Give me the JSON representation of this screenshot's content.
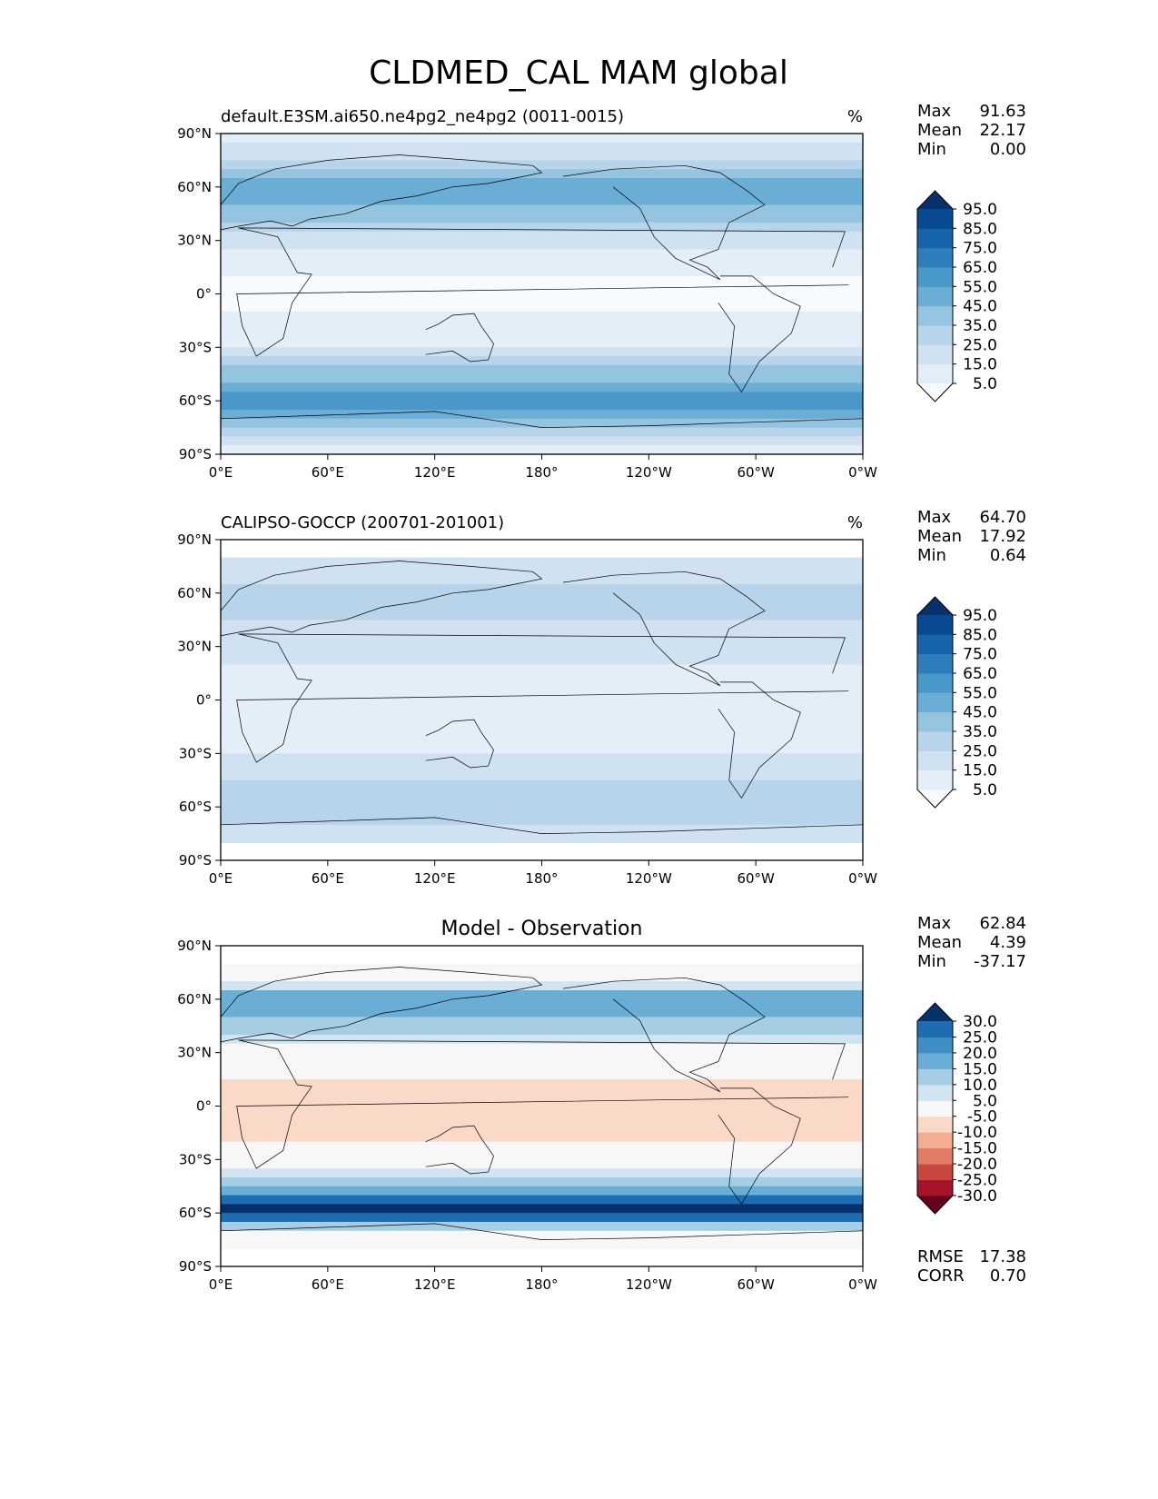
{
  "figure": {
    "title": "CLDMED_CAL MAM global",
    "lon_ticks": [
      "0°E",
      "60°E",
      "120°E",
      "180°",
      "120°W",
      "60°W",
      "0°W"
    ],
    "lat_ticks": [
      "90°N",
      "60°N",
      "30°N",
      "0°",
      "30°S",
      "60°S",
      "90°S"
    ]
  },
  "chart_data": [
    {
      "type": "heatmap",
      "title": "default.E3SM.ai650.ne4pg2_ne4pg2 (0011-0015)",
      "units": "%",
      "xlim": [
        0,
        360
      ],
      "ylim": [
        -90,
        90
      ],
      "stats": {
        "max_label": "Max",
        "max": "91.63",
        "mean_label": "Mean",
        "mean": "22.17",
        "min_label": "Min",
        "min": "0.00"
      },
      "levels": [
        "5.0",
        "15.0",
        "25.0",
        "35.0",
        "45.0",
        "55.0",
        "65.0",
        "75.0",
        "85.0",
        "95.0"
      ],
      "colors": [
        "#f7fbff",
        "#e3eef9",
        "#d0e2f2",
        "#b7d4ea",
        "#94c4df",
        "#6aaed6",
        "#4a98c9",
        "#2e7ebc",
        "#1764ab",
        "#084a91",
        "#08306b"
      ],
      "zonal_profile": {
        "lat": [
          -90,
          -75,
          -60,
          -45,
          -30,
          -15,
          0,
          15,
          30,
          45,
          60,
          75,
          90
        ],
        "value": [
          5,
          30,
          65,
          40,
          14,
          6,
          3,
          6,
          18,
          40,
          50,
          25,
          10
        ]
      }
    },
    {
      "type": "heatmap",
      "title": "CALIPSO-GOCCP (200701-201001)",
      "units": "%",
      "xlim": [
        0,
        360
      ],
      "ylim": [
        -90,
        90
      ],
      "stats": {
        "max_label": "Max",
        "max": "64.70",
        "mean_label": "Mean",
        "mean": "17.92",
        "min_label": "Min",
        "min": "0.64"
      },
      "levels": [
        "5.0",
        "15.0",
        "25.0",
        "35.0",
        "45.0",
        "55.0",
        "65.0",
        "75.0",
        "85.0",
        "95.0"
      ],
      "colors": [
        "#f7fbff",
        "#e3eef9",
        "#d0e2f2",
        "#b7d4ea",
        "#94c4df",
        "#6aaed6",
        "#4a98c9",
        "#2e7ebc",
        "#1764ab",
        "#084a91",
        "#08306b"
      ],
      "zonal_profile": {
        "lat": [
          -80,
          -70,
          -60,
          -45,
          -30,
          -15,
          0,
          15,
          30,
          45,
          60,
          70,
          80
        ],
        "value": [
          12,
          25,
          30,
          25,
          15,
          12,
          10,
          12,
          18,
          25,
          28,
          22,
          18
        ]
      }
    },
    {
      "type": "heatmap",
      "title": "Model - Observation",
      "xlim": [
        0,
        360
      ],
      "ylim": [
        -90,
        90
      ],
      "stats": {
        "max_label": "Max",
        "max": "62.84",
        "mean_label": "Mean",
        "mean": "4.39",
        "min_label": "Min",
        "min": "-37.17",
        "rmse_label": "RMSE",
        "rmse": "17.38",
        "corr_label": "CORR",
        "corr": "0.70"
      },
      "levels": [
        "-30.0",
        "-25.0",
        "-20.0",
        "-15.0",
        "-10.0",
        "-5.0",
        "5.0",
        "10.0",
        "15.0",
        "20.0",
        "25.0",
        "30.0"
      ],
      "colors": [
        "#67001f",
        "#a51429",
        "#c94741",
        "#e07b65",
        "#f4ad92",
        "#fbd9c9",
        "#f7f7f7",
        "#d1e5f0",
        "#a5cde3",
        "#6aaed6",
        "#3f8fc5",
        "#1f6db1",
        "#08306b"
      ],
      "zonal_profile": {
        "lat": [
          -80,
          -70,
          -60,
          -45,
          -30,
          -15,
          0,
          15,
          30,
          45,
          60,
          70,
          80
        ],
        "value": [
          -5,
          5,
          35,
          15,
          0,
          -8,
          -8,
          -5,
          2,
          12,
          20,
          5,
          0
        ]
      }
    }
  ]
}
